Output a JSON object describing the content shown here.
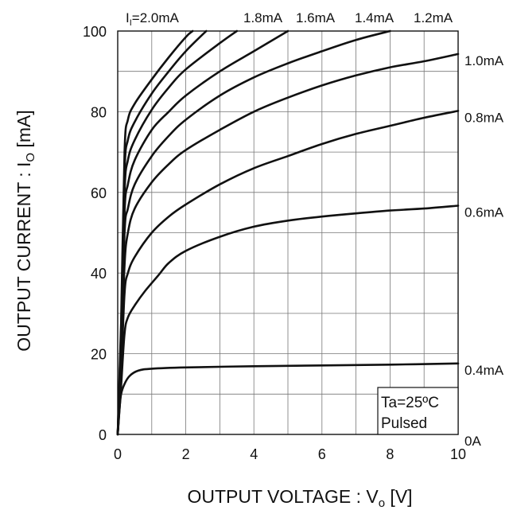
{
  "chart_data": {
    "type": "line",
    "title": "",
    "xlabel_main": "OUTPUT VOLTAGE : V",
    "xlabel_sub": "o",
    "xlabel_unit": " [V]",
    "ylabel_main": "OUTPUT CURRENT : I",
    "ylabel_sub": "O",
    "ylabel_unit": " [mA]",
    "xlim": [
      0,
      10
    ],
    "ylim": [
      0,
      100
    ],
    "x_ticks": [
      0,
      2,
      4,
      6,
      8,
      10
    ],
    "y_ticks": [
      0,
      20,
      40,
      60,
      80,
      100
    ],
    "x_tick_labels": [
      "0",
      "2",
      "4",
      "6",
      "8",
      "10"
    ],
    "y_tick_labels": [
      "0",
      "20",
      "40",
      "60",
      "80",
      "100"
    ],
    "x_grid_step": 1,
    "y_grid_step": 10,
    "grid": true,
    "annotation": [
      "Ta=25ºC",
      "Pulsed"
    ],
    "param_prefix": "I",
    "param_sub": "I",
    "series": [
      {
        "name": "0A",
        "label_pos": "right",
        "points": [
          [
            0,
            0
          ],
          [
            10,
            0
          ]
        ]
      },
      {
        "name": "0.4mA",
        "label_pos": "right",
        "points": [
          [
            0,
            0
          ],
          [
            0.05,
            6
          ],
          [
            0.1,
            10
          ],
          [
            0.2,
            12.5
          ],
          [
            0.35,
            14.5
          ],
          [
            0.6,
            15.8
          ],
          [
            1,
            16.3
          ],
          [
            2,
            16.6
          ],
          [
            4,
            16.9
          ],
          [
            6,
            17.1
          ],
          [
            8,
            17.3
          ],
          [
            10,
            17.6
          ]
        ]
      },
      {
        "name": "0.6mA",
        "label_pos": "right",
        "points": [
          [
            0,
            0
          ],
          [
            0.1,
            12
          ],
          [
            0.2,
            25
          ],
          [
            0.3,
            29
          ],
          [
            0.5,
            32
          ],
          [
            0.8,
            35.5
          ],
          [
            1.2,
            39.5
          ],
          [
            1.5,
            42.5
          ],
          [
            2,
            45.5
          ],
          [
            3,
            49
          ],
          [
            4,
            51.5
          ],
          [
            5,
            53
          ],
          [
            6,
            54
          ],
          [
            7,
            54.8
          ],
          [
            8,
            55.5
          ],
          [
            9,
            56
          ],
          [
            10,
            56.7
          ]
        ]
      },
      {
        "name": "0.8mA",
        "label_pos": "right",
        "points": [
          [
            0,
            0
          ],
          [
            0.1,
            15
          ],
          [
            0.2,
            35
          ],
          [
            0.3,
            40
          ],
          [
            0.5,
            44
          ],
          [
            1,
            50
          ],
          [
            1.5,
            54
          ],
          [
            2,
            57
          ],
          [
            3,
            62
          ],
          [
            4,
            66
          ],
          [
            5,
            69
          ],
          [
            6,
            72
          ],
          [
            7,
            74.5
          ],
          [
            8,
            76.5
          ],
          [
            9,
            78.5
          ],
          [
            10,
            80.2
          ]
        ]
      },
      {
        "name": "1.0mA",
        "label_pos": "right",
        "points": [
          [
            0,
            0
          ],
          [
            0.1,
            18
          ],
          [
            0.2,
            42
          ],
          [
            0.3,
            50
          ],
          [
            0.5,
            56
          ],
          [
            1,
            62.5
          ],
          [
            1.5,
            67
          ],
          [
            2,
            70.5
          ],
          [
            3,
            75.5
          ],
          [
            4,
            80
          ],
          [
            5,
            83.5
          ],
          [
            6,
            86.5
          ],
          [
            7,
            89
          ],
          [
            8,
            91
          ],
          [
            9,
            92.5
          ],
          [
            10,
            94.3
          ]
        ]
      },
      {
        "name": "1.2mA",
        "label_pos": "top",
        "points": [
          [
            0,
            0
          ],
          [
            0.1,
            20
          ],
          [
            0.2,
            50
          ],
          [
            0.3,
            56
          ],
          [
            0.5,
            62
          ],
          [
            1,
            69
          ],
          [
            1.5,
            74
          ],
          [
            2,
            78
          ],
          [
            3,
            84
          ],
          [
            4,
            88.5
          ],
          [
            5,
            92
          ],
          [
            6,
            95
          ],
          [
            7,
            97.8
          ],
          [
            8,
            100
          ]
        ]
      },
      {
        "name": "1.4mA",
        "label_pos": "top",
        "points": [
          [
            0,
            0
          ],
          [
            0.1,
            22
          ],
          [
            0.2,
            55
          ],
          [
            0.3,
            62
          ],
          [
            0.5,
            68
          ],
          [
            1,
            75.5
          ],
          [
            1.5,
            80
          ],
          [
            2,
            84
          ],
          [
            3,
            90
          ],
          [
            4,
            95
          ],
          [
            5,
            100
          ]
        ]
      },
      {
        "name": "1.6mA",
        "label_pos": "top",
        "points": [
          [
            0,
            0
          ],
          [
            0.1,
            24
          ],
          [
            0.2,
            60
          ],
          [
            0.3,
            68
          ],
          [
            0.5,
            73
          ],
          [
            1,
            80.5
          ],
          [
            1.5,
            86
          ],
          [
            2,
            90.5
          ],
          [
            3,
            97
          ],
          [
            3.5,
            100
          ]
        ]
      },
      {
        "name": "1.8mA",
        "label_pos": "top",
        "points": [
          [
            0,
            0
          ],
          [
            0.1,
            26
          ],
          [
            0.2,
            65
          ],
          [
            0.3,
            73
          ],
          [
            0.5,
            77.5
          ],
          [
            1,
            84.5
          ],
          [
            1.5,
            90
          ],
          [
            2,
            95
          ],
          [
            2.6,
            100
          ]
        ]
      },
      {
        "name": "2.0mA",
        "label_pos": "top",
        "points": [
          [
            0,
            0
          ],
          [
            0.1,
            28
          ],
          [
            0.2,
            70
          ],
          [
            0.3,
            78
          ],
          [
            0.5,
            82
          ],
          [
            1,
            88
          ],
          [
            1.5,
            93.5
          ],
          [
            2,
            98.5
          ],
          [
            2.2,
            100
          ]
        ]
      }
    ]
  }
}
